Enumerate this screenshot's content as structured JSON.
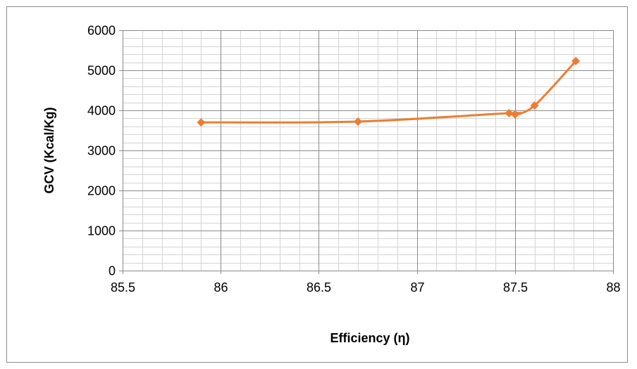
{
  "chart_data": {
    "type": "scatter",
    "title": "",
    "xlabel": "Efficiency (η)",
    "ylabel": "GCV (Kcal/Kg)",
    "xlim": [
      85.5,
      88
    ],
    "ylim": [
      0,
      6000
    ],
    "x_ticks": [
      "85.5",
      "86",
      "86.5",
      "87",
      "87.5",
      "88"
    ],
    "y_ticks": [
      "0",
      "1000",
      "2000",
      "3000",
      "4000",
      "5000",
      "6000"
    ],
    "grid": true,
    "legend": "none",
    "series": [
      {
        "color": "#ed7d31",
        "marker": "diamond",
        "line": "smoothed",
        "x": [
          85.9,
          86.7,
          87.47,
          87.5,
          87.6,
          87.81
        ],
        "y": [
          3700,
          3720,
          3930,
          3900,
          4120,
          5230
        ]
      }
    ]
  }
}
